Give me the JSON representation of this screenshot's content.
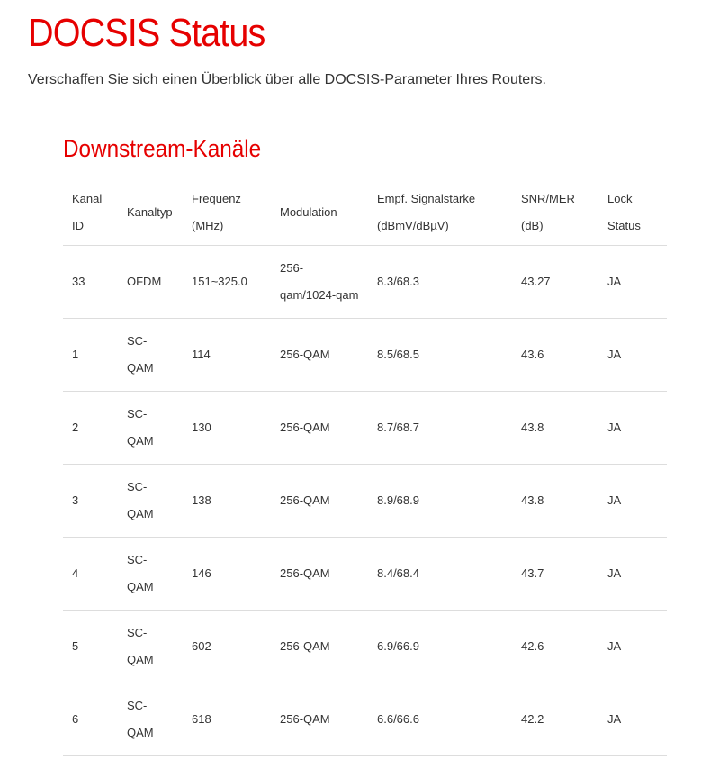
{
  "page": {
    "title": "DOCSIS Status",
    "intro": "Verschaffen Sie sich einen Überblick über alle DOCSIS-Parameter Ihres Routers.",
    "accent_color": "#e60000"
  },
  "downstream": {
    "title": "Downstream-Kanäle",
    "headers": [
      "Kanal ID",
      "Kanaltyp",
      "Frequenz (MHz)",
      "Modulation",
      "Empf. Signalstärke (dBmV/dBµV)",
      "SNR/MER (dB)",
      "Lock Status"
    ],
    "rows": [
      [
        "33",
        "OFDM",
        "151~325.0",
        "256-qam/1024-qam",
        "8.3/68.3",
        "43.27",
        "JA"
      ],
      [
        "1",
        "SC-QAM",
        "114",
        "256-QAM",
        "8.5/68.5",
        "43.6",
        "JA"
      ],
      [
        "2",
        "SC-QAM",
        "130",
        "256-QAM",
        "8.7/68.7",
        "43.8",
        "JA"
      ],
      [
        "3",
        "SC-QAM",
        "138",
        "256-QAM",
        "8.9/68.9",
        "43.8",
        "JA"
      ],
      [
        "4",
        "SC-QAM",
        "146",
        "256-QAM",
        "8.4/68.4",
        "43.7",
        "JA"
      ],
      [
        "5",
        "SC-QAM",
        "602",
        "256-QAM",
        "6.9/66.9",
        "42.6",
        "JA"
      ],
      [
        "6",
        "SC-QAM",
        "618",
        "256-QAM",
        "6.6/66.6",
        "42.2",
        "JA"
      ]
    ]
  }
}
